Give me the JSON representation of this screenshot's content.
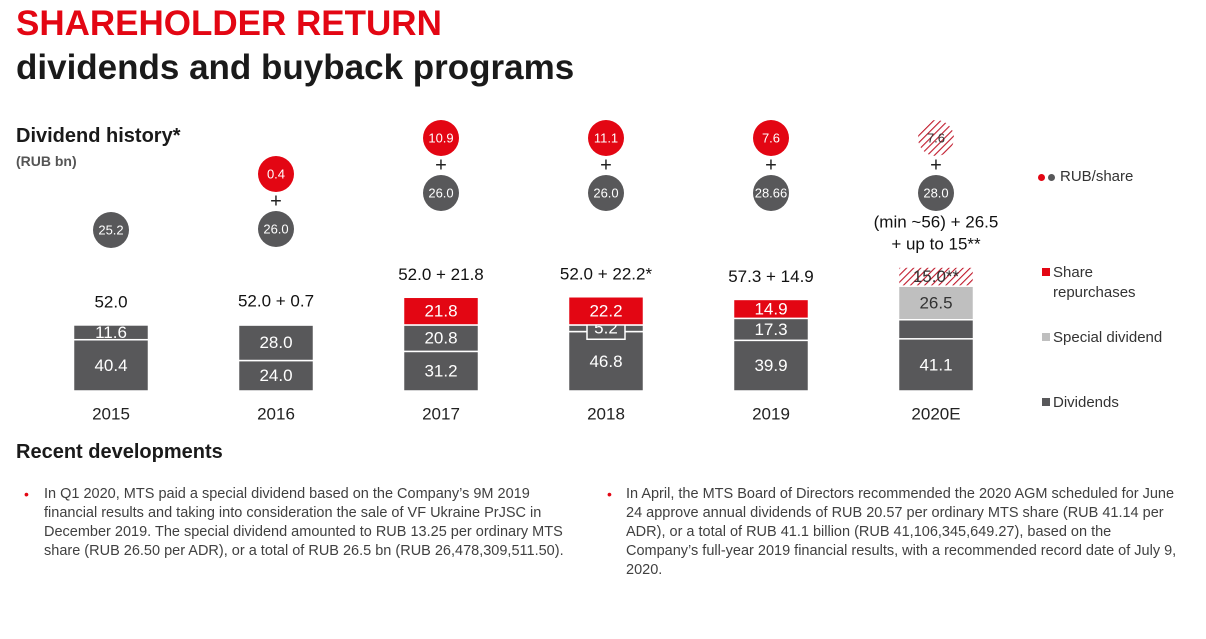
{
  "header": {
    "title": "SHAREHOLDER RETURN",
    "subtitle": "dividends and buyback programs"
  },
  "chart_data": {
    "type": "bar",
    "stacked": true,
    "title": "Dividend history*",
    "subtitle": "(RUB bn)",
    "categories": [
      "2015",
      "2016",
      "2017",
      "2018",
      "2019",
      "2020E"
    ],
    "ylim": [
      0,
      100
    ],
    "series": [
      {
        "name": "Dividends",
        "color": "#58585a",
        "values": [
          40.4,
          24.0,
          31.2,
          46.8,
          39.9,
          41.1
        ],
        "value_labels": [
          "40.4",
          "24.0",
          "31.2",
          "46.8",
          "39.9",
          "41.1"
        ]
      },
      {
        "color": "#58585a",
        "values": [
          11.6,
          28.0,
          20.8,
          5.2,
          17.3,
          15
        ],
        "value_labels": [
          "11.6",
          "28.0",
          "20.8",
          "5.2",
          "17.3",
          null
        ]
      },
      {
        "name": "Special dividend",
        "color": "#bfbfbf",
        "values": [
          null,
          null,
          null,
          null,
          null,
          26.5
        ],
        "value_labels": [
          null,
          null,
          null,
          null,
          null,
          "26.5"
        ]
      },
      {
        "name": "Share repurchases",
        "color": "#e30613",
        "values": [
          null,
          0.7,
          21.8,
          22.2,
          14.9,
          15.0
        ],
        "value_labels": [
          null,
          null,
          "21.8",
          "22.2",
          "14.9",
          "15.0**"
        ],
        "hatched": [
          false,
          false,
          false,
          false,
          false,
          true
        ]
      }
    ],
    "totals": [
      [
        "52.0"
      ],
      [
        "52.0 + 0.7"
      ],
      [
        "52.0 + 21.8"
      ],
      [
        "52.0 + 22.2*"
      ],
      [
        "57.3 + 14.9"
      ],
      [
        "(min ~56) + 26.5",
        "+ up to 15**"
      ]
    ],
    "per_share": {
      "name": "RUB/share",
      "plus": "+",
      "series": [
        {
          "color": "#58585a",
          "values": [
            25.2,
            26.0,
            26.0,
            26.0,
            28.66,
            28.0
          ],
          "value_labels": [
            "25.2",
            "26.0",
            "26.0",
            "26.0",
            "28.66",
            "28.0"
          ]
        },
        {
          "color": "#e30613",
          "values": [
            null,
            0.4,
            10.9,
            11.1,
            7.6,
            7.6
          ],
          "value_labels": [
            null,
            "0.4",
            "10.9",
            "11.1",
            "7.6",
            "7.6"
          ],
          "hatched": [
            false,
            false,
            false,
            false,
            false,
            true
          ]
        }
      ]
    }
  },
  "developments": {
    "title": "Recent developments",
    "items": [
      "In Q1 2020, MTS paid a special dividend based on the Company’s 9M 2019 financial results and taking into consideration the sale of VF Ukraine PrJSC in December 2019. The special dividend amounted to RUB 13.25 per ordinary MTS share (RUB 26.50 per ADR), or a total of RUB 26.5 bn (RUB 26,478,309,511.50).",
      "In April, the MTS Board of Directors recommended the 2020 AGM scheduled for June 24 approve annual dividends of RUB 20.57 per ordinary MTS share (RUB 41.14 per ADR), or a total of RUB 41.1 billion (RUB 41,106,345,649.27), based on the Company’s full-year 2019 financial results, with a recommended record date of July 9, 2020."
    ]
  }
}
